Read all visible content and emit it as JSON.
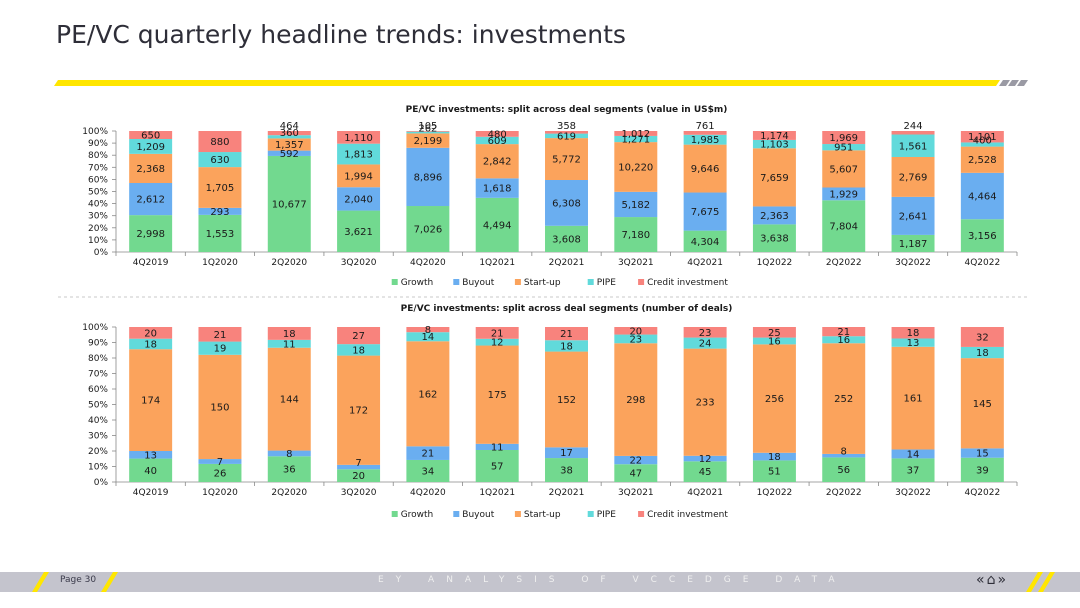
{
  "page": {
    "title": "PE/VC quarterly headline trends: investments",
    "page_number": "Page 30",
    "footer_text": "EY ANALYSIS OF VCCEDGE DATA",
    "accent_color": "#ffe600",
    "dark_color": "#2e2e38"
  },
  "chart_data": [
    {
      "type": "bar",
      "stacked": "percent",
      "title": "PE/VC investments: split across deal segments (value in US$m)",
      "categories": [
        "4Q2019",
        "1Q2020",
        "2Q2020",
        "3Q2020",
        "4Q2020",
        "1Q2021",
        "2Q2021",
        "3Q2021",
        "4Q2021",
        "1Q2022",
        "2Q2022",
        "3Q2022",
        "4Q2022"
      ],
      "yticks": [
        "0%",
        "10%",
        "20%",
        "30%",
        "40%",
        "50%",
        "60%",
        "70%",
        "80%",
        "90%",
        "100%"
      ],
      "series": [
        {
          "name": "Growth",
          "color": "#72d98f",
          "values": [
            2998,
            1553,
            10677,
            3621,
            7026,
            4494,
            3608,
            7180,
            4304,
            3638,
            7804,
            1187,
            3156
          ]
        },
        {
          "name": "Buyout",
          "color": "#6aaef0",
          "values": [
            2612,
            293,
            592,
            2040,
            8896,
            1618,
            6308,
            5182,
            7675,
            2363,
            1929,
            2641,
            4464
          ]
        },
        {
          "name": "Start-up",
          "color": "#fba35c",
          "values": [
            2368,
            1705,
            1357,
            1994,
            2199,
            2842,
            5772,
            10220,
            9646,
            7659,
            5607,
            2769,
            2528
          ]
        },
        {
          "name": "PIPE",
          "color": "#61dadb",
          "values": [
            1209,
            630,
            360,
            1813,
            262,
            609,
            619,
            1271,
            1985,
            1103,
            951,
            1561,
            400
          ]
        },
        {
          "name": "Credit investment",
          "color": "#f8837d",
          "values": [
            650,
            880,
            464,
            1110,
            105,
            480,
            358,
            1012,
            761,
            1174,
            1969,
            244,
            1101
          ]
        }
      ],
      "legend": "bottom"
    },
    {
      "type": "bar",
      "stacked": "percent",
      "title": "PE/VC investments: split across deal segments (number of deals)",
      "categories": [
        "4Q2019",
        "1Q2020",
        "2Q2020",
        "3Q2020",
        "4Q2020",
        "1Q2021",
        "2Q2021",
        "3Q2021",
        "4Q2021",
        "1Q2022",
        "2Q2022",
        "3Q2022",
        "4Q2022"
      ],
      "yticks": [
        "0%",
        "10%",
        "20%",
        "30%",
        "40%",
        "50%",
        "60%",
        "70%",
        "80%",
        "90%",
        "100%"
      ],
      "series": [
        {
          "name": "Growth",
          "color": "#72d98f",
          "values": [
            40,
            26,
            36,
            20,
            34,
            57,
            38,
            47,
            45,
            51,
            56,
            37,
            39
          ]
        },
        {
          "name": "Buyout",
          "color": "#6aaef0",
          "values": [
            13,
            7,
            8,
            7,
            21,
            11,
            17,
            22,
            12,
            18,
            8,
            14,
            15
          ]
        },
        {
          "name": "Start-up",
          "color": "#fba35c",
          "values": [
            174,
            150,
            144,
            172,
            162,
            175,
            152,
            298,
            233,
            256,
            252,
            161,
            145
          ]
        },
        {
          "name": "PIPE",
          "color": "#61dadb",
          "values": [
            18,
            19,
            11,
            18,
            14,
            12,
            18,
            23,
            24,
            16,
            16,
            13,
            18
          ]
        },
        {
          "name": "Credit investment",
          "color": "#f8837d",
          "values": [
            20,
            21,
            18,
            27,
            8,
            21,
            21,
            20,
            23,
            25,
            21,
            18,
            32
          ]
        }
      ],
      "legend": "bottom"
    }
  ]
}
